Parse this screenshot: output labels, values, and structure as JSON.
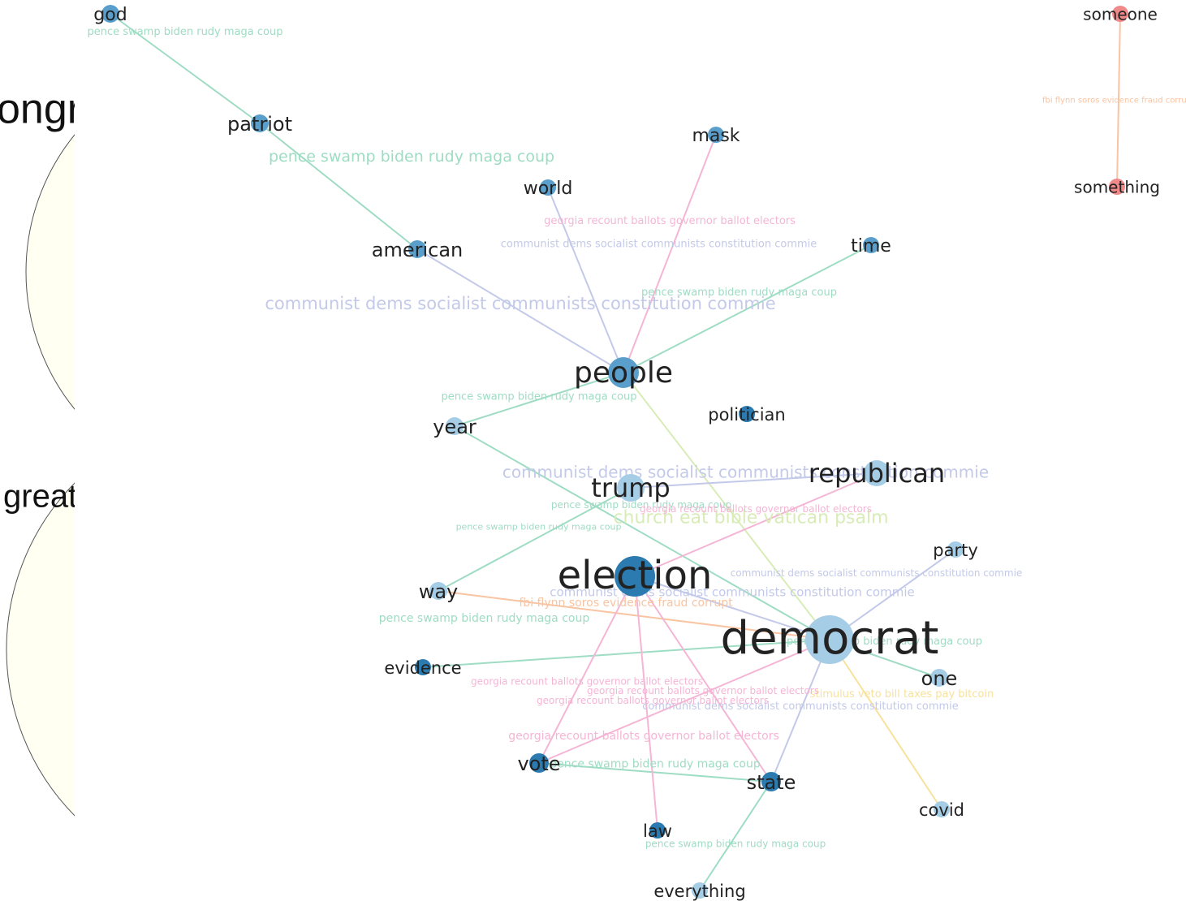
{
  "side_panels": [
    "ongr",
    "great"
  ],
  "nodes": [
    "god",
    "patriot",
    "american",
    "world",
    "mask",
    "time",
    "people",
    "year",
    "politician",
    "trump",
    "republican",
    "party",
    "way",
    "election",
    "evidence",
    "democrat",
    "one",
    "vote",
    "state",
    "covid",
    "law",
    "everything",
    "someone",
    "something"
  ],
  "edges": [
    {
      "source": "god",
      "target": "patriot",
      "label": "pence swamp biden rudy maga coup",
      "color": "#9fdcc4"
    },
    {
      "source": "patriot",
      "target": "american",
      "label": "pence swamp biden rudy maga coup",
      "color": "#9fdcc4"
    },
    {
      "source": "american",
      "target": "people",
      "label": "communist dems socialist communists constitution commie",
      "color": "#c3c9e8"
    },
    {
      "source": "world",
      "target": "people",
      "label": "communist dems socialist communists constitution commie",
      "color": "#c3c9e8"
    },
    {
      "source": "mask",
      "target": "people",
      "label": "georgia recount ballots governor ballot electors",
      "color": "#f5b5d5"
    },
    {
      "source": "time",
      "target": "people",
      "label": "pence swamp biden rudy maga coup",
      "color": "#9fdcc4"
    },
    {
      "source": "people",
      "target": "year",
      "label": "pence swamp biden rudy maga coup",
      "color": "#9fdcc4"
    },
    {
      "source": "people",
      "target": "democrat",
      "label": "church eat bible vatican psalm",
      "color": "#d8ecb8"
    },
    {
      "source": "year",
      "target": "democrat",
      "label": "pence swamp biden rudy maga coup",
      "color": "#9fdcc4"
    },
    {
      "source": "trump",
      "target": "republican",
      "label": "communist dems socialist communists constitution commie",
      "color": "#c3c9e8"
    },
    {
      "source": "trump",
      "target": "way",
      "label": "pence swamp biden rudy maga coup",
      "color": "#9fdcc4"
    },
    {
      "source": "republican",
      "target": "election",
      "label": "georgia recount ballots governor ballot electors",
      "color": "#f5b5d5"
    },
    {
      "source": "party",
      "target": "democrat",
      "label": "communist dems socialist communists constitution commie",
      "color": "#c3c9e8"
    },
    {
      "source": "way",
      "target": "democrat",
      "label": "fbi flynn soros evidence fraud corrupt",
      "color": "#f8c4a2"
    },
    {
      "source": "evidence",
      "target": "democrat",
      "label": "pence swamp biden rudy maga coup",
      "color": "#9fdcc4"
    },
    {
      "source": "election",
      "target": "democrat",
      "label": "communist dems socialist communists constitution commie",
      "color": "#c3c9e8"
    },
    {
      "source": "democrat",
      "target": "one",
      "label": "pence swamp biden rudy maga coup",
      "color": "#9fdcc4"
    },
    {
      "source": "democrat",
      "target": "covid",
      "label": "stimulus veto bill taxes pay bitcoin",
      "color": "#f7e29c"
    },
    {
      "source": "democrat",
      "target": "state",
      "label": "communist dems socialist communists constitution commie",
      "color": "#c3c9e8"
    },
    {
      "source": "election",
      "target": "vote",
      "label": "georgia recount ballots governor ballot electors",
      "color": "#f5b5d5"
    },
    {
      "source": "election",
      "target": "state",
      "label": "georgia recount ballots governor ballot electors",
      "color": "#f5b5d5"
    },
    {
      "source": "vote",
      "target": "democrat",
      "label": "georgia recount ballots governor ballot electors",
      "color": "#f5b5d5"
    },
    {
      "source": "vote",
      "target": "state",
      "label": "pence swamp biden rudy maga coup",
      "color": "#9fdcc4"
    },
    {
      "source": "election",
      "target": "law",
      "label": "georgia recount ballots governor ballot electors",
      "color": "#f5b5d5"
    },
    {
      "source": "state",
      "target": "everything",
      "label": "pence swamp biden rudy maga coup",
      "color": "#9fdcc4"
    },
    {
      "source": "someone",
      "target": "something",
      "label": "fbi flynn soros evidence fraud corrupt",
      "color": "#f8c4a2"
    }
  ]
}
